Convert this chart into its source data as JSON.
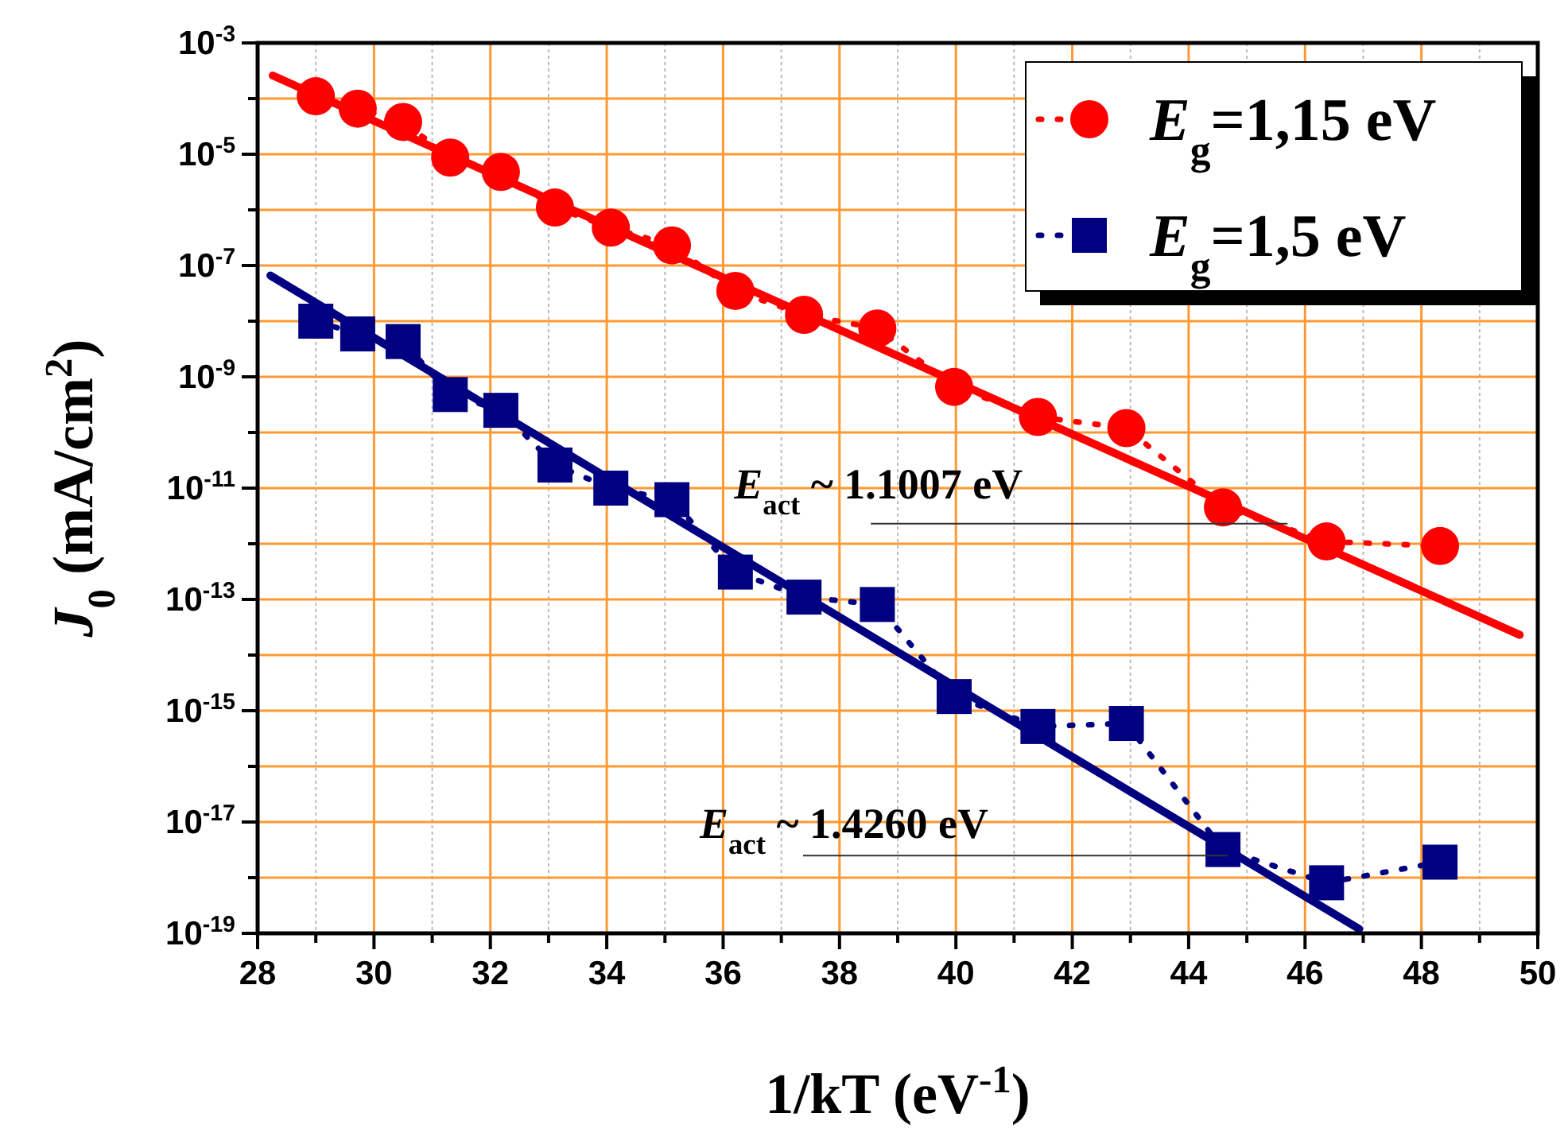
{
  "chart_data": {
    "type": "line",
    "xlabel": "1/kT (eV$^{-1}$)",
    "ylabel": "J$_{0}$ (mA/cm$^{2}$)",
    "x": [
      29.0,
      29.72,
      30.5,
      31.31,
      32.18,
      33.11,
      34.07,
      35.12,
      36.21,
      37.39,
      38.65,
      39.97,
      41.41,
      42.93,
      44.59,
      46.37,
      48.32
    ],
    "series": [
      {
        "name": "E$_{g}$=1,15 eV",
        "color": "#ff0000",
        "marker": "circle",
        "line_style": "dotted",
        "values": [
          0.00011,
          6.6e-05,
          3.8e-05,
          8.7e-06,
          4.8e-06,
          1.1e-06,
          4.8e-07,
          2.3e-07,
          3.5e-08,
          1.3e-08,
          7.4e-09,
          6.6e-10,
          1.9e-10,
          1.2e-10,
          4.5e-12,
          1.1e-12,
          9.1e-13
        ]
      },
      {
        "name": "E$_{g}$=1,5 eV",
        "color": "#000080",
        "marker": "square",
        "line_style": "dotted",
        "values": [
          1e-08,
          5.9e-09,
          4.3e-09,
          4.8e-10,
          2.5e-10,
          2.6e-11,
          1e-11,
          6.2e-12,
          3.1e-13,
          1.1e-13,
          8.1e-14,
          1.8e-15,
          5.2e-16,
          5.9e-16,
          3.2e-18,
          8.1e-19,
          1.9e-18
        ]
      },
      {
        "color": "#ff0000",
        "marker": "none",
        "line_style": "solid",
        "x": [
          28.26,
          49.69
        ],
        "values": [
          0.00026,
          2.3e-14
        ]
      },
      {
        "color": "#000080",
        "marker": "none",
        "line_style": "solid",
        "x": [
          28.22,
          46.93
        ],
        "values": [
          6.6e-08,
          1.2e-19
        ]
      }
    ],
    "annotations": [
      {
        "text": "E$_{act}$ ~ 1.1007 eV",
        "x": 45.7,
        "y": 2.3e-12
      },
      {
        "text": "E$_{act}$ ~ 1.4260  eV",
        "x": 44.67,
        "y": 2.5e-18
      }
    ],
    "log": "y",
    "grid": true,
    "legend": "top right",
    "xlim": [
      28,
      50
    ],
    "xticks": [
      28,
      {
        "value": 29,
        "label": null
      },
      30,
      {
        "value": 31,
        "label": null
      },
      32,
      {
        "value": 33,
        "label": null
      },
      34,
      {
        "value": 35,
        "label": null
      },
      36,
      {
        "value": 37,
        "label": null
      },
      38,
      {
        "value": 39,
        "label": null
      },
      40,
      {
        "value": 41,
        "label": null
      },
      42,
      {
        "value": 43,
        "label": null
      },
      44,
      {
        "value": 45,
        "label": null
      },
      46,
      {
        "value": 47,
        "label": null
      },
      48,
      {
        "value": 49,
        "label": null
      },
      50
    ],
    "ylim": [
      1e-19,
      0.001
    ],
    "yticks": [
      {
        "value": 0.001,
        "label": "10$^{-3}$"
      },
      {
        "value": 0.0001,
        "label": null
      },
      {
        "value": 1e-05,
        "label": "10$^{-5}$"
      },
      {
        "value": 1e-06,
        "label": null
      },
      {
        "value": 1e-07,
        "label": "10$^{-7}$"
      },
      {
        "value": 1e-08,
        "label": null
      },
      {
        "value": 1e-09,
        "label": "10$^{-9}$"
      },
      {
        "value": 1e-10,
        "label": null
      },
      {
        "value": 1e-11,
        "label": "10$^{-11}$"
      },
      {
        "value": 1e-12,
        "label": null
      },
      {
        "value": 1e-13,
        "label": "10$^{-13}$"
      },
      {
        "value": 1e-14,
        "label": null
      },
      {
        "value": 1e-15,
        "label": "10$^{-15}$"
      },
      {
        "value": 1e-16,
        "label": null
      },
      {
        "value": 1e-17,
        "label": "10$^{-17}$"
      },
      {
        "value": 1e-18,
        "label": null
      },
      {
        "value": 1e-19,
        "label": "10$^{-19}$"
      }
    ]
  }
}
